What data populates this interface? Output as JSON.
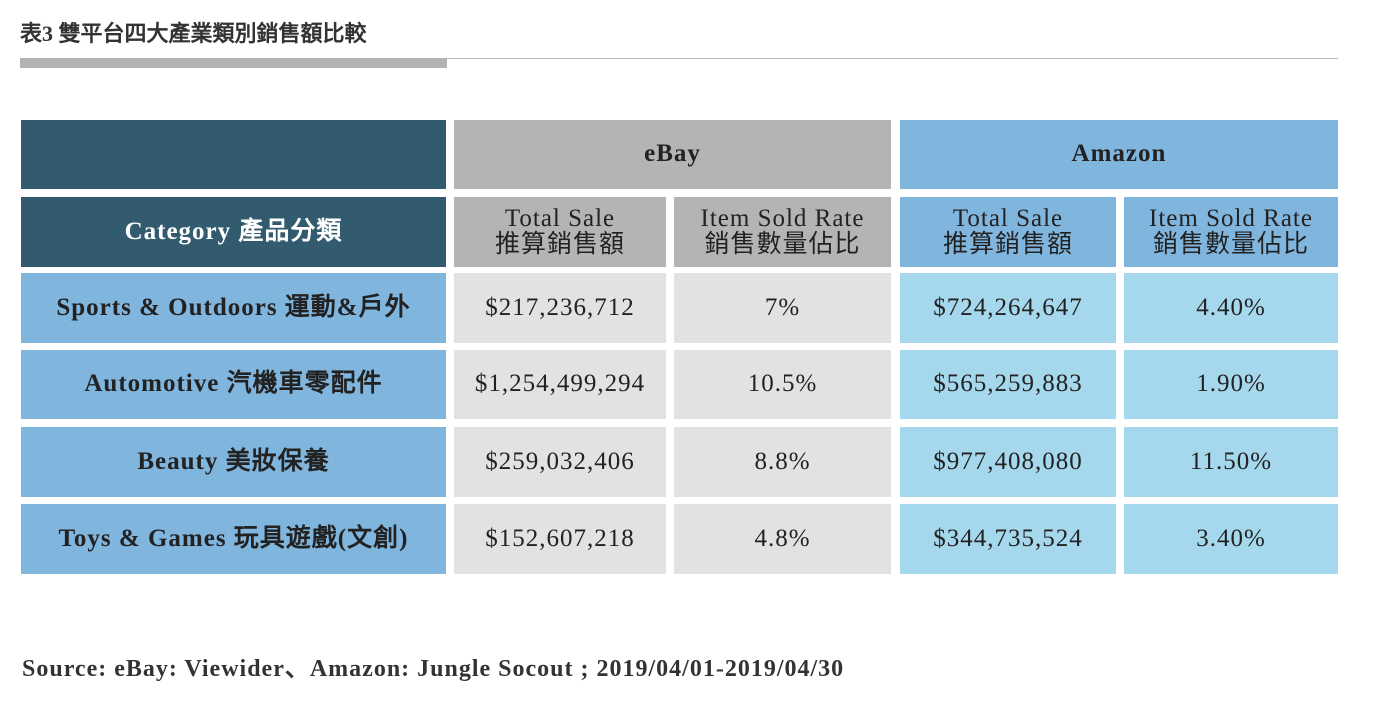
{
  "title": "表3 雙平台四大產業類別銷售額比較",
  "table": {
    "groups": [
      "eBay",
      "Amazon"
    ],
    "corner": "Category 產品分類",
    "columns": [
      [
        "Total Sale",
        "推算銷售額"
      ],
      [
        "Item Sold Rate",
        "銷售數量佔比"
      ],
      [
        "Total Sale",
        "推算銷售額"
      ],
      [
        "Item Sold Rate",
        "銷售數量佔比"
      ]
    ],
    "rows": [
      [
        "Sports & Outdoors 運動&戶外",
        "$217,236,712",
        "7%",
        "$724,264,647",
        "4.40%"
      ],
      [
        "Automotive 汽機車零配件",
        "$1,254,499,294",
        "10.5%",
        "$565,259,883",
        "1.90%"
      ],
      [
        "Beauty 美妝保養",
        "$259,032,406",
        "8.8%",
        "$977,408,080",
        "11.50%"
      ],
      [
        "Toys & Games 玩具遊戲(文創)",
        "$152,607,218",
        "4.8%",
        "$344,735,524",
        "3.40%"
      ]
    ]
  },
  "source": "Source: eBay: Viewider、Amazon: Jungle Socout ; 2019/04/01-2019/04/30"
}
